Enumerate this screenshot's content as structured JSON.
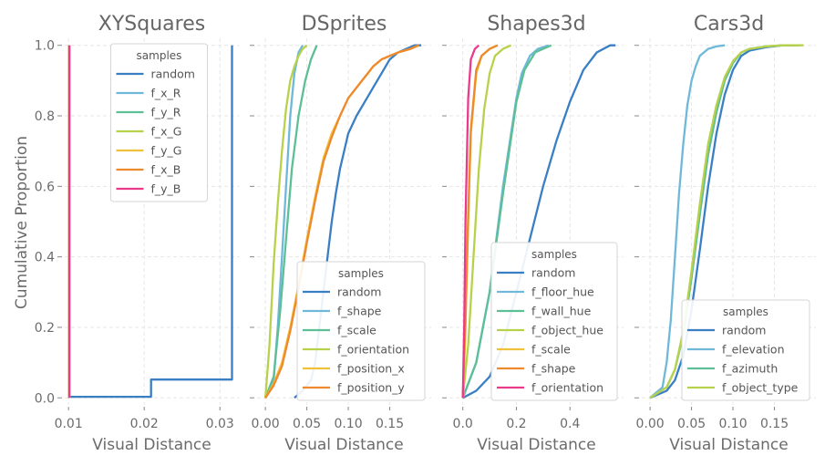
{
  "figure": {
    "ylabel": "Cumulative Proportion"
  },
  "colors": {
    "c_blue": "#3a7fc4",
    "c_sky": "#6fb8d9",
    "c_teal": "#5dbf95",
    "c_lime": "#b7d24a",
    "c_yellow": "#f0c23c",
    "c_orange": "#ee8a2d",
    "c_pink": "#ec3a8b"
  },
  "chart_data": [
    {
      "type": "line",
      "title": "XYSquares",
      "xlabel": "Visual Distance",
      "ylabel": "Cumulative Proportion",
      "xlim": [
        0.0095,
        0.0325
      ],
      "ylim": [
        -0.02,
        1.02
      ],
      "xticks": [
        0.01,
        0.02,
        0.03
      ],
      "xtick_labels": [
        "0.01",
        "0.02",
        "0.03"
      ],
      "yticks": [
        0.0,
        0.2,
        0.4,
        0.6,
        0.8,
        1.0
      ],
      "ytick_labels": [
        "0.0",
        "0.2",
        "0.4",
        "0.6",
        "0.8",
        "1.0"
      ],
      "legend_title": "samples",
      "legend_loc": "upper-center",
      "series": [
        {
          "name": "random",
          "color": "#3a7fc4",
          "x": [
            0.0101,
            0.0101,
            0.0209,
            0.0209,
            0.0316,
            0.0316
          ],
          "y": [
            0.0,
            0.003,
            0.003,
            0.052,
            0.052,
            1.0
          ]
        },
        {
          "name": "f_x_R",
          "color": "#6fb8d9",
          "x": [
            0.0101,
            0.0101
          ],
          "y": [
            0.0,
            1.0
          ]
        },
        {
          "name": "f_y_R",
          "color": "#5dbf95",
          "x": [
            0.0101,
            0.0101
          ],
          "y": [
            0.0,
            1.0
          ]
        },
        {
          "name": "f_x_G",
          "color": "#b7d24a",
          "x": [
            0.0101,
            0.0101
          ],
          "y": [
            0.0,
            1.0
          ]
        },
        {
          "name": "f_y_G",
          "color": "#f0c23c",
          "x": [
            0.0101,
            0.0101
          ],
          "y": [
            0.0,
            1.0
          ]
        },
        {
          "name": "f_x_B",
          "color": "#ee8a2d",
          "x": [
            0.0101,
            0.0101
          ],
          "y": [
            0.0,
            1.0
          ]
        },
        {
          "name": "f_y_B",
          "color": "#ec3a8b",
          "x": [
            0.0101,
            0.0101
          ],
          "y": [
            0.0,
            1.0
          ]
        }
      ]
    },
    {
      "type": "line",
      "title": "DSprites",
      "xlabel": "Visual Distance",
      "xlim": [
        -0.01,
        0.2
      ],
      "ylim": [
        -0.02,
        1.02
      ],
      "xticks": [
        0.0,
        0.05,
        0.1,
        0.15
      ],
      "xtick_labels": [
        "0.00",
        "0.05",
        "0.10",
        "0.15"
      ],
      "yticks": [
        0.0,
        0.2,
        0.4,
        0.6,
        0.8,
        1.0
      ],
      "legend_title": "samples",
      "legend_loc": "lower-right",
      "series": [
        {
          "name": "random",
          "color": "#3a7fc4",
          "x": [
            0.035,
            0.045,
            0.055,
            0.06,
            0.065,
            0.07,
            0.075,
            0.08,
            0.085,
            0.09,
            0.095,
            0.1,
            0.11,
            0.12,
            0.13,
            0.14,
            0.15,
            0.16,
            0.17,
            0.18,
            0.188
          ],
          "y": [
            0.0,
            0.02,
            0.05,
            0.1,
            0.2,
            0.3,
            0.4,
            0.5,
            0.58,
            0.65,
            0.7,
            0.75,
            0.8,
            0.84,
            0.88,
            0.92,
            0.96,
            0.98,
            0.99,
            1.0,
            1.0
          ]
        },
        {
          "name": "f_shape",
          "color": "#6fb8d9",
          "x": [
            0.0,
            0.01,
            0.015,
            0.02,
            0.025,
            0.03,
            0.035,
            0.04,
            0.045
          ],
          "y": [
            0.0,
            0.05,
            0.2,
            0.4,
            0.6,
            0.8,
            0.92,
            0.98,
            1.0
          ]
        },
        {
          "name": "f_scale",
          "color": "#5dbf95",
          "x": [
            0.0,
            0.01,
            0.018,
            0.025,
            0.032,
            0.04,
            0.048,
            0.055,
            0.062
          ],
          "y": [
            0.0,
            0.06,
            0.25,
            0.45,
            0.65,
            0.8,
            0.9,
            0.96,
            1.0
          ]
        },
        {
          "name": "f_orientation",
          "color": "#b7d24a",
          "x": [
            0.0,
            0.005,
            0.01,
            0.015,
            0.02,
            0.025,
            0.03,
            0.035,
            0.04,
            0.045,
            0.05
          ],
          "y": [
            0.0,
            0.15,
            0.38,
            0.55,
            0.7,
            0.82,
            0.9,
            0.94,
            0.97,
            0.99,
            1.0
          ]
        },
        {
          "name": "f_position_x",
          "color": "#f0c23c",
          "x": [
            0.0,
            0.01,
            0.02,
            0.03,
            0.04,
            0.05,
            0.06,
            0.07,
            0.08,
            0.09,
            0.1,
            0.11,
            0.12,
            0.13,
            0.14,
            0.15,
            0.16,
            0.175,
            0.185
          ],
          "y": [
            0.0,
            0.04,
            0.1,
            0.2,
            0.32,
            0.45,
            0.57,
            0.68,
            0.75,
            0.8,
            0.85,
            0.88,
            0.91,
            0.94,
            0.96,
            0.97,
            0.98,
            0.99,
            1.0
          ]
        },
        {
          "name": "f_position_y",
          "color": "#ee8a2d",
          "x": [
            0.0,
            0.01,
            0.02,
            0.03,
            0.04,
            0.05,
            0.06,
            0.07,
            0.08,
            0.09,
            0.1,
            0.11,
            0.12,
            0.13,
            0.14,
            0.15,
            0.16,
            0.175,
            0.185
          ],
          "y": [
            0.0,
            0.035,
            0.09,
            0.19,
            0.31,
            0.44,
            0.56,
            0.67,
            0.74,
            0.8,
            0.85,
            0.88,
            0.91,
            0.94,
            0.96,
            0.97,
            0.98,
            0.99,
            1.0
          ]
        }
      ]
    },
    {
      "type": "line",
      "title": "Shapes3d",
      "xlabel": "Visual Distance",
      "xlim": [
        -0.05,
        0.6
      ],
      "ylim": [
        -0.02,
        1.02
      ],
      "xticks": [
        0.0,
        0.2,
        0.4
      ],
      "xtick_labels": [
        "0.0",
        "0.2",
        "0.4"
      ],
      "yticks": [
        0.0,
        0.2,
        0.4,
        0.6,
        0.8,
        1.0
      ],
      "legend_title": "samples",
      "legend_loc": "lower-right",
      "series": [
        {
          "name": "random",
          "color": "#3a7fc4",
          "x": [
            0.0,
            0.05,
            0.1,
            0.15,
            0.2,
            0.25,
            0.3,
            0.35,
            0.4,
            0.45,
            0.5,
            0.55,
            0.57
          ],
          "y": [
            0.0,
            0.02,
            0.06,
            0.15,
            0.3,
            0.45,
            0.6,
            0.73,
            0.84,
            0.93,
            0.98,
            1.0,
            1.0
          ]
        },
        {
          "name": "f_floor_hue",
          "color": "#6fb8d9",
          "x": [
            0.0,
            0.05,
            0.1,
            0.15,
            0.2,
            0.22,
            0.25,
            0.28,
            0.32
          ],
          "y": [
            0.0,
            0.1,
            0.3,
            0.6,
            0.85,
            0.92,
            0.97,
            0.99,
            1.0
          ]
        },
        {
          "name": "f_wall_hue",
          "color": "#5dbf95",
          "x": [
            0.0,
            0.05,
            0.1,
            0.15,
            0.2,
            0.23,
            0.27,
            0.3,
            0.33
          ],
          "y": [
            0.0,
            0.1,
            0.3,
            0.58,
            0.84,
            0.93,
            0.98,
            0.99,
            1.0
          ]
        },
        {
          "name": "f_object_hue",
          "color": "#b7d24a",
          "x": [
            0.0,
            0.02,
            0.04,
            0.06,
            0.08,
            0.1,
            0.12,
            0.15,
            0.18
          ],
          "y": [
            0.0,
            0.15,
            0.4,
            0.65,
            0.82,
            0.92,
            0.97,
            0.99,
            1.0
          ]
        },
        {
          "name": "f_scale",
          "color": "#f0c23c",
          "x": [
            0.0,
            0.01,
            0.02,
            0.03,
            0.05,
            0.07,
            0.1,
            0.13
          ],
          "y": [
            0.0,
            0.2,
            0.5,
            0.75,
            0.92,
            0.97,
            0.99,
            1.0
          ]
        },
        {
          "name": "f_shape",
          "color": "#ee8a2d",
          "x": [
            0.0,
            0.01,
            0.02,
            0.03,
            0.05,
            0.07,
            0.1,
            0.13
          ],
          "y": [
            0.0,
            0.22,
            0.52,
            0.76,
            0.93,
            0.97,
            0.99,
            1.0
          ]
        },
        {
          "name": "f_orientation",
          "color": "#ec3a8b",
          "x": [
            0.0,
            0.005,
            0.01,
            0.02,
            0.03,
            0.045,
            0.06
          ],
          "y": [
            0.0,
            0.2,
            0.5,
            0.85,
            0.96,
            0.99,
            1.0
          ]
        }
      ]
    },
    {
      "type": "line",
      "title": "Cars3d",
      "xlabel": "Visual Distance",
      "xlim": [
        -0.01,
        0.2
      ],
      "ylim": [
        -0.02,
        1.02
      ],
      "xticks": [
        0.0,
        0.05,
        0.1,
        0.15
      ],
      "xtick_labels": [
        "0.00",
        "0.05",
        "0.10",
        "0.15"
      ],
      "yticks": [
        0.0,
        0.2,
        0.4,
        0.6,
        0.8,
        1.0
      ],
      "legend_title": "samples",
      "legend_loc": "lower-right",
      "series": [
        {
          "name": "random",
          "color": "#3a7fc4",
          "x": [
            0.0,
            0.02,
            0.03,
            0.04,
            0.05,
            0.06,
            0.07,
            0.08,
            0.09,
            0.1,
            0.11,
            0.12,
            0.14,
            0.16,
            0.18
          ],
          "y": [
            0.0,
            0.02,
            0.05,
            0.12,
            0.25,
            0.42,
            0.6,
            0.75,
            0.86,
            0.93,
            0.97,
            0.985,
            0.995,
            1.0,
            1.0
          ]
        },
        {
          "name": "f_elevation",
          "color": "#6fb8d9",
          "x": [
            0.0,
            0.015,
            0.02,
            0.025,
            0.03,
            0.035,
            0.04,
            0.045,
            0.05,
            0.055,
            0.06,
            0.07,
            0.08,
            0.09
          ],
          "y": [
            0.0,
            0.03,
            0.1,
            0.22,
            0.4,
            0.58,
            0.72,
            0.83,
            0.9,
            0.94,
            0.97,
            0.99,
            0.997,
            1.0
          ]
        },
        {
          "name": "f_azimuth",
          "color": "#5dbf95",
          "x": [
            0.0,
            0.02,
            0.03,
            0.04,
            0.05,
            0.06,
            0.07,
            0.08,
            0.09,
            0.1,
            0.11,
            0.12,
            0.14,
            0.16,
            0.18
          ],
          "y": [
            0.0,
            0.03,
            0.08,
            0.18,
            0.34,
            0.52,
            0.69,
            0.81,
            0.9,
            0.95,
            0.98,
            0.99,
            0.997,
            1.0,
            1.0
          ]
        },
        {
          "name": "f_object_type",
          "color": "#b7d24a",
          "x": [
            0.0,
            0.02,
            0.03,
            0.04,
            0.05,
            0.06,
            0.07,
            0.08,
            0.09,
            0.1,
            0.11,
            0.12,
            0.14,
            0.16,
            0.185
          ],
          "y": [
            0.0,
            0.03,
            0.08,
            0.19,
            0.36,
            0.55,
            0.72,
            0.83,
            0.91,
            0.955,
            0.98,
            0.99,
            0.997,
            1.0,
            1.0
          ]
        }
      ]
    }
  ]
}
